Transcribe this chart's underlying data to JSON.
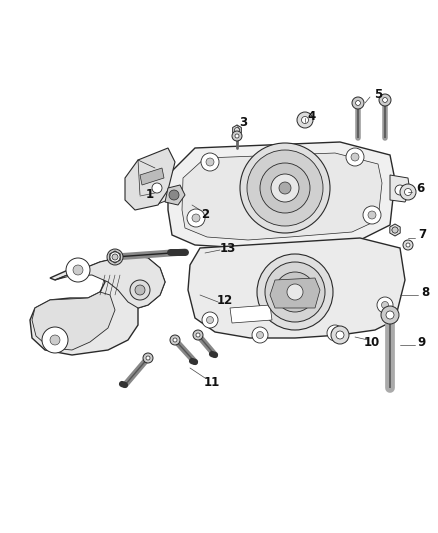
{
  "background_color": "#ffffff",
  "fig_width": 4.38,
  "fig_height": 5.33,
  "dpi": 100,
  "line_color": "#2a2a2a",
  "shade_light": "#e8e8e8",
  "shade_mid": "#d0d0d0",
  "shade_dark": "#b0b0b0",
  "black": "#222222",
  "label_fontsize": 8.5,
  "label_color": "#111111"
}
